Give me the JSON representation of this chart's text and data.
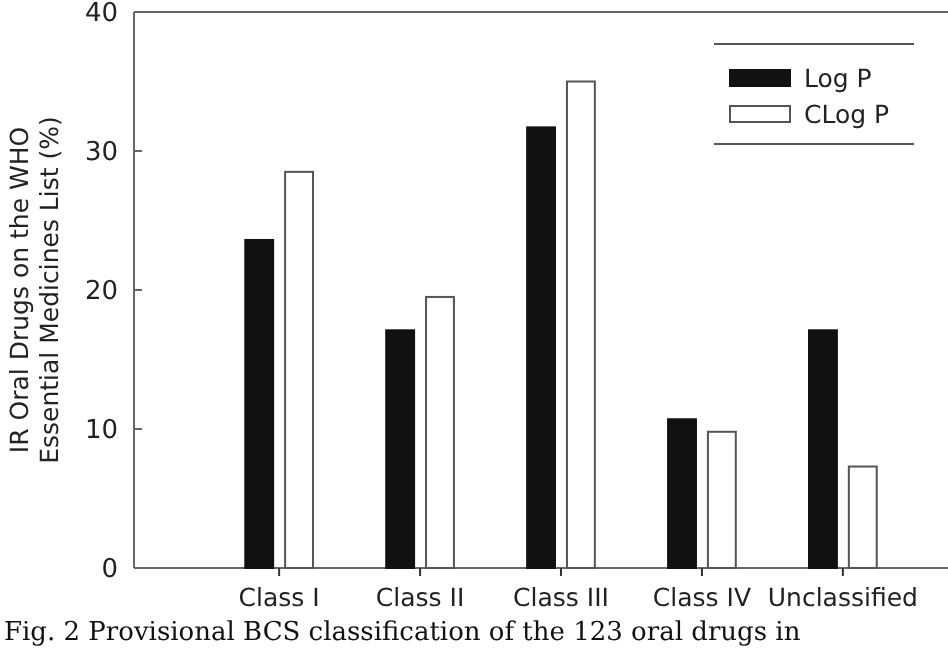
{
  "chart_data": {
    "type": "bar",
    "ylabel": "IR Oral Drugs on the WHO Essential Medicines List (%)",
    "categories": [
      "Class I",
      "Class II",
      "Class III",
      "Class IV",
      "Unclassified"
    ],
    "series": [
      {
        "name": "Log P",
        "color": "#111111",
        "values": [
          23.6,
          17.1,
          31.7,
          10.7,
          17.1
        ]
      },
      {
        "name": "CLog P",
        "color": "#ffffff",
        "values": [
          28.5,
          19.5,
          35,
          9.8,
          7.3
        ]
      }
    ],
    "ylim": [
      0,
      40
    ],
    "yticks": [
      0,
      10,
      20,
      30,
      40
    ],
    "grid": false,
    "legend": "top right",
    "annotations": [
      "Fig. 2 Provisional BCS classification of the 123 oral drugs in"
    ]
  }
}
